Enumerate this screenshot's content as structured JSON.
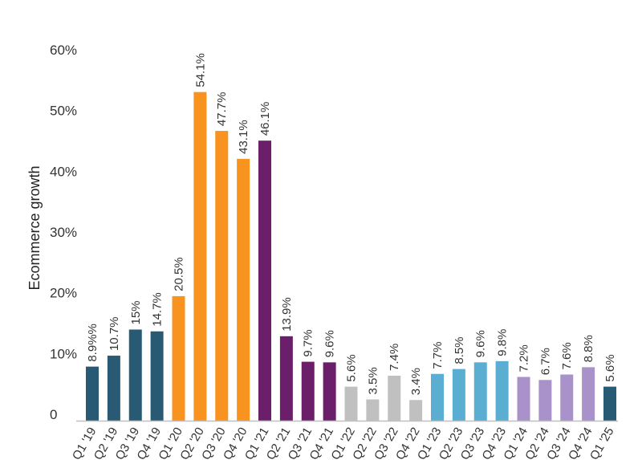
{
  "chart_data": {
    "type": "bar",
    "title": "",
    "xlabel": "",
    "ylabel": "Ecommerce growth",
    "ylim": [
      0,
      60
    ],
    "yticks": [
      "0",
      "10%",
      "20%",
      "30%",
      "40%",
      "50%",
      "60%"
    ],
    "grid": false,
    "categories": [
      "Q1 '19",
      "Q2 '19",
      "Q3 '19",
      "Q4 '19",
      "Q1 '20",
      "Q2 '20",
      "Q3 '20",
      "Q4 '20",
      "Q1 '21",
      "Q2 '21",
      "Q3 '21",
      "Q4 '21",
      "Q1 '22",
      "Q2 '22",
      "Q3 '22",
      "Q4 '22",
      "Q1 '23",
      "Q2 '23",
      "Q3 '23",
      "Q4 '23",
      "Q1 '24",
      "Q2 '24",
      "Q3 '24",
      "Q4 '24",
      "Q1 '25"
    ],
    "values": [
      8.9,
      10.7,
      15,
      14.7,
      20.5,
      54.1,
      47.7,
      43.1,
      46.1,
      13.9,
      9.7,
      9.6,
      5.6,
      3.5,
      7.4,
      3.4,
      7.7,
      8.5,
      9.6,
      9.8,
      7.2,
      6.7,
      7.6,
      8.8,
      5.6
    ],
    "data_labels": [
      "8.9%%",
      "10.7%",
      "15%",
      "14.7%",
      "20.5%",
      "54.1%",
      "47.7%",
      "43.1%",
      "46.1%",
      "13.9%",
      "9.7%",
      "9.6%",
      "5.6%",
      "3.5%",
      "7.4%",
      "3.4%",
      "7.7%",
      "8.5%",
      "9.6%",
      "9.8%",
      "7.2%",
      "6.7%",
      "7.6%",
      "8.8%",
      "5.6%"
    ],
    "colors": [
      "#295a73",
      "#295a73",
      "#295a73",
      "#295a73",
      "#f7931e",
      "#f7931e",
      "#f7931e",
      "#f7931e",
      "#6b1f6b",
      "#6b1f6b",
      "#6b1f6b",
      "#6b1f6b",
      "#c0c0c0",
      "#c0c0c0",
      "#c0c0c0",
      "#c0c0c0",
      "#5aaed1",
      "#5aaed1",
      "#5aaed1",
      "#5aaed1",
      "#a991c9",
      "#a991c9",
      "#a991c9",
      "#a991c9",
      "#295a73"
    ]
  }
}
